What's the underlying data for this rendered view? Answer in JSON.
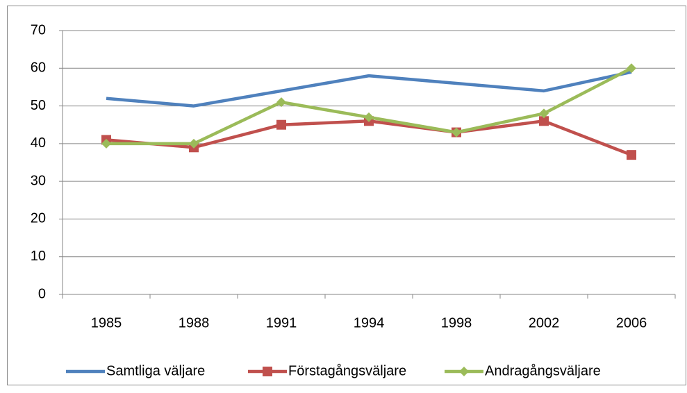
{
  "chart_data": {
    "type": "line",
    "categories": [
      "1985",
      "1988",
      "1991",
      "1994",
      "1998",
      "2002",
      "2006"
    ],
    "series": [
      {
        "name": "Samtliga väljare",
        "color": "#4f81bd",
        "marker": "none",
        "values": [
          52,
          50,
          54,
          58,
          56,
          54,
          59
        ]
      },
      {
        "name": "Förstagångsväljare",
        "color": "#c0504d",
        "marker": "square",
        "values": [
          41,
          39,
          45,
          46,
          43,
          46,
          37
        ]
      },
      {
        "name": "Andragångsväljare",
        "color": "#9bbb59",
        "marker": "diamond",
        "values": [
          40,
          40,
          51,
          47,
          43,
          48,
          60
        ]
      }
    ],
    "ylim": [
      0,
      70
    ],
    "yticks": [
      0,
      10,
      20,
      30,
      40,
      50,
      60,
      70
    ],
    "grid": true,
    "legend": "bottom"
  }
}
